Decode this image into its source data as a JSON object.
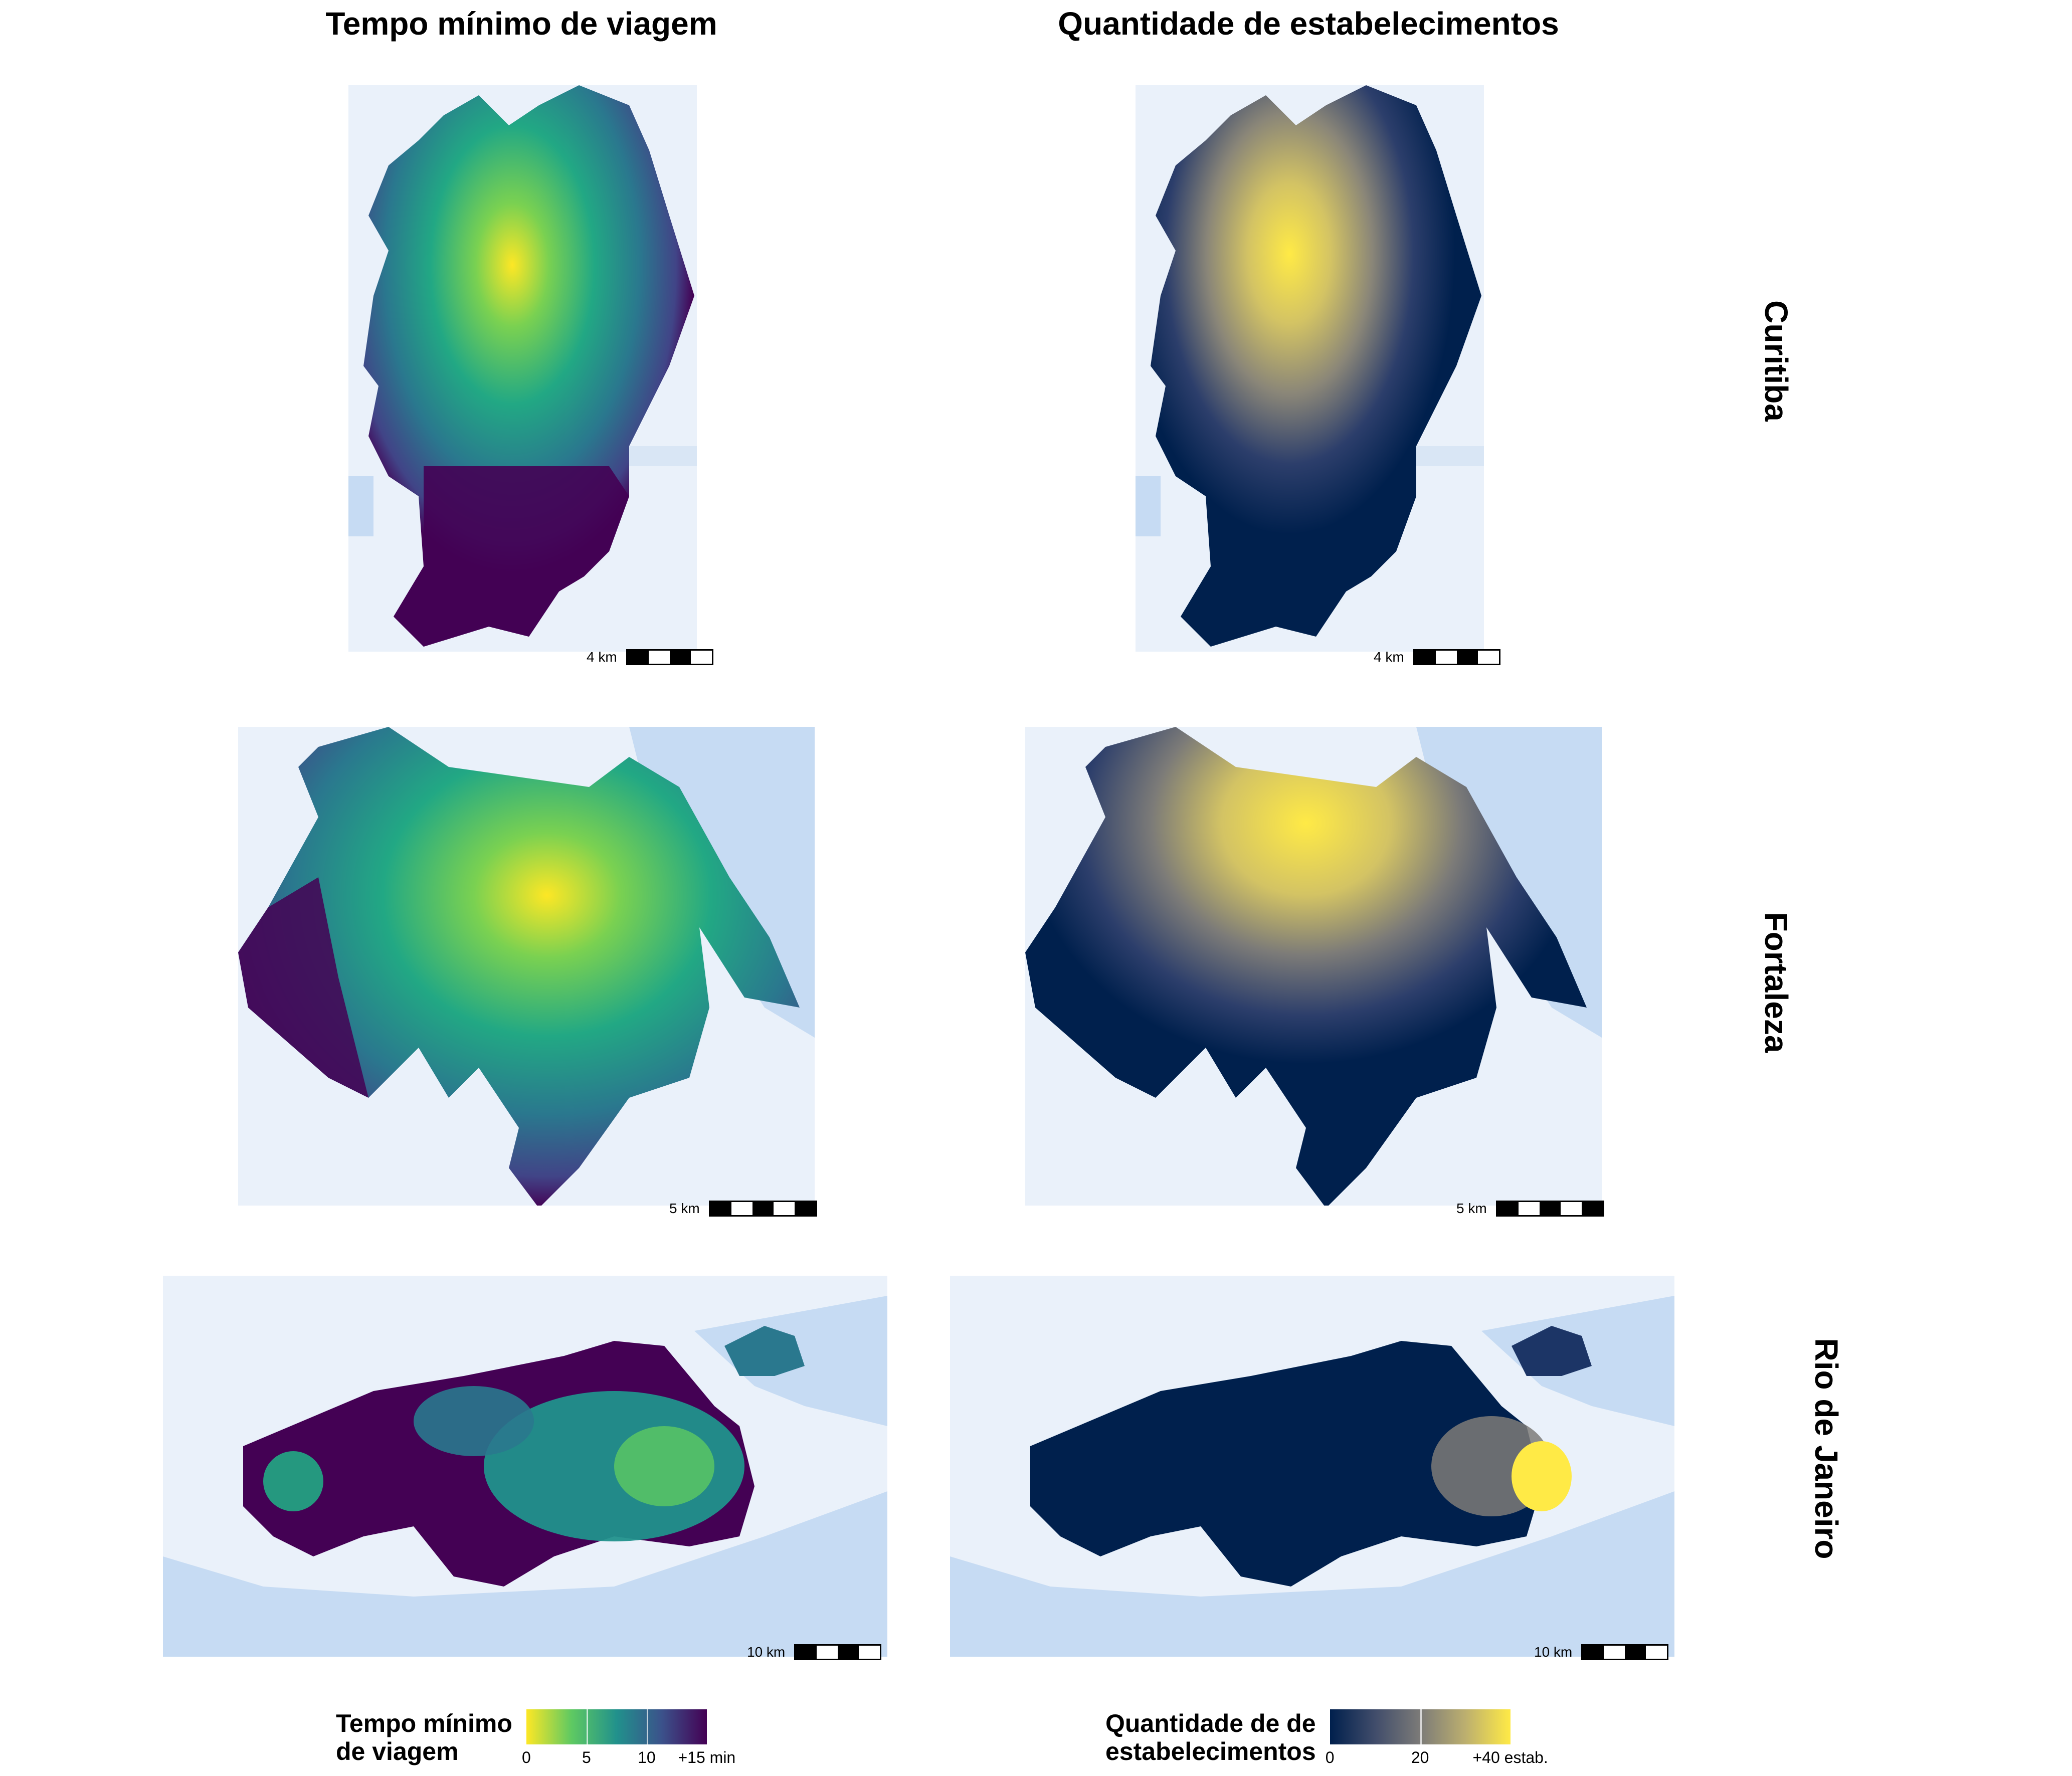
{
  "columns": [
    {
      "title": "Tempo mínimo de viagem"
    },
    {
      "title": "Quantidade de estabelecimentos"
    }
  ],
  "rows": [
    {
      "city": "Curitiba",
      "scale_label": "4 km"
    },
    {
      "city": "Fortaleza",
      "scale_label": "5 km"
    },
    {
      "city": "Rio de Janeiro",
      "scale_label": "10 km"
    }
  ],
  "legend_time": {
    "title": "Tempo mínimo de viagem",
    "title_line1": "Tempo mínimo",
    "title_line2": "de viagem",
    "ticks": [
      "0",
      "5",
      "10",
      "+15 min"
    ],
    "tick_values": [
      0,
      5,
      10,
      15
    ],
    "range": [
      0,
      15
    ],
    "colors": [
      "#fde725",
      "#5ec962",
      "#21918c",
      "#3b528b",
      "#440154"
    ]
  },
  "legend_count": {
    "title": "Quantidade de de estabelecimentos",
    "title_line1": "Quantidade de de",
    "title_line2": "estabelecimentos",
    "ticks": [
      "0",
      "20",
      "+40 estab."
    ],
    "tick_values": [
      0,
      20,
      40
    ],
    "range": [
      0,
      40
    ],
    "colors": [
      "#00204d",
      "#414d6b",
      "#7c7b78",
      "#bcaf6f",
      "#ffea46"
    ]
  },
  "colors": {
    "water": "#c6dbf3",
    "land": "#eaf1fa",
    "time_high": "#440154",
    "count_low": "#00204d"
  }
}
